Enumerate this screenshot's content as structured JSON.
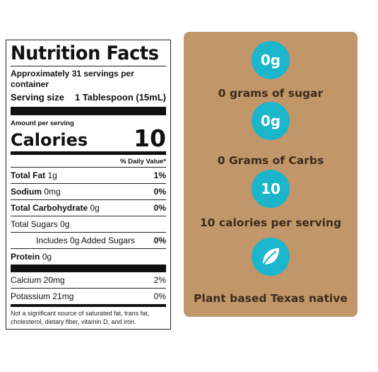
{
  "nutrition": {
    "title": "Nutrition Facts",
    "servings": "Approximately 31 servings per container",
    "serving_size_label": "Serving size",
    "serving_size_value": "1 Tablespoon (15mL)",
    "amount_per_serving": "Amount per serving",
    "calories_label": "Calories",
    "calories_value": "10",
    "daily_value_header": "% Daily Value*",
    "rows": [
      {
        "name": "Total Fat",
        "amount": "1g",
        "pct": "1%"
      },
      {
        "name": "Sodium",
        "amount": "0mg",
        "pct": "0%"
      },
      {
        "name": "Total Carbohydrate",
        "amount": "0g",
        "pct": "0%"
      },
      {
        "name": "Total Sugars 0g",
        "amount": "",
        "pct": ""
      },
      {
        "name": "Includes 0g Added Sugars",
        "amount": "",
        "pct": "0%"
      },
      {
        "name": "Protein",
        "amount": "0g",
        "pct": ""
      }
    ],
    "vitamins": [
      {
        "name": "Calcium 20mg",
        "pct": "2%"
      },
      {
        "name": "Potassium 21mg",
        "pct": "0%"
      }
    ],
    "footnote": "Not a significant source of saturated fat, trans fat, cholesterol, dietary fiber, vitamin D, and iron."
  },
  "features": [
    {
      "badge": "0g",
      "text": "0 grams of sugar"
    },
    {
      "badge": "0g",
      "text": "0 Grams of Carbs"
    },
    {
      "badge": "10",
      "text": "10 calories per serving"
    },
    {
      "icon": "leaf-icon",
      "text": "Plant based Texas native"
    }
  ],
  "colors": {
    "panel": "#c1976a",
    "badge": "#1bb5cc",
    "panel_text": "#3c2a1c"
  }
}
